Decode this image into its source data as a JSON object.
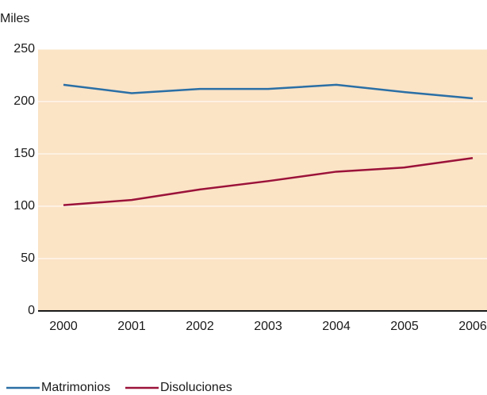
{
  "chart_data": {
    "type": "line",
    "ylabel": "Miles",
    "x": [
      "2000",
      "2001",
      "2002",
      "2003",
      "2004",
      "2005",
      "2006"
    ],
    "series": [
      {
        "name": "Matrimonios",
        "color": "#2a6fa5",
        "values": [
          216,
          208,
          212,
          212,
          216,
          209,
          203
        ]
      },
      {
        "name": "Disoluciones",
        "color": "#9b1239",
        "values": [
          101,
          106,
          116,
          124,
          133,
          137,
          146
        ]
      }
    ],
    "ylim": [
      0,
      250
    ],
    "yticks": [
      0,
      50,
      100,
      150,
      200,
      250
    ],
    "grid": true,
    "background": "#fbe3c6",
    "legend": "bottom"
  }
}
